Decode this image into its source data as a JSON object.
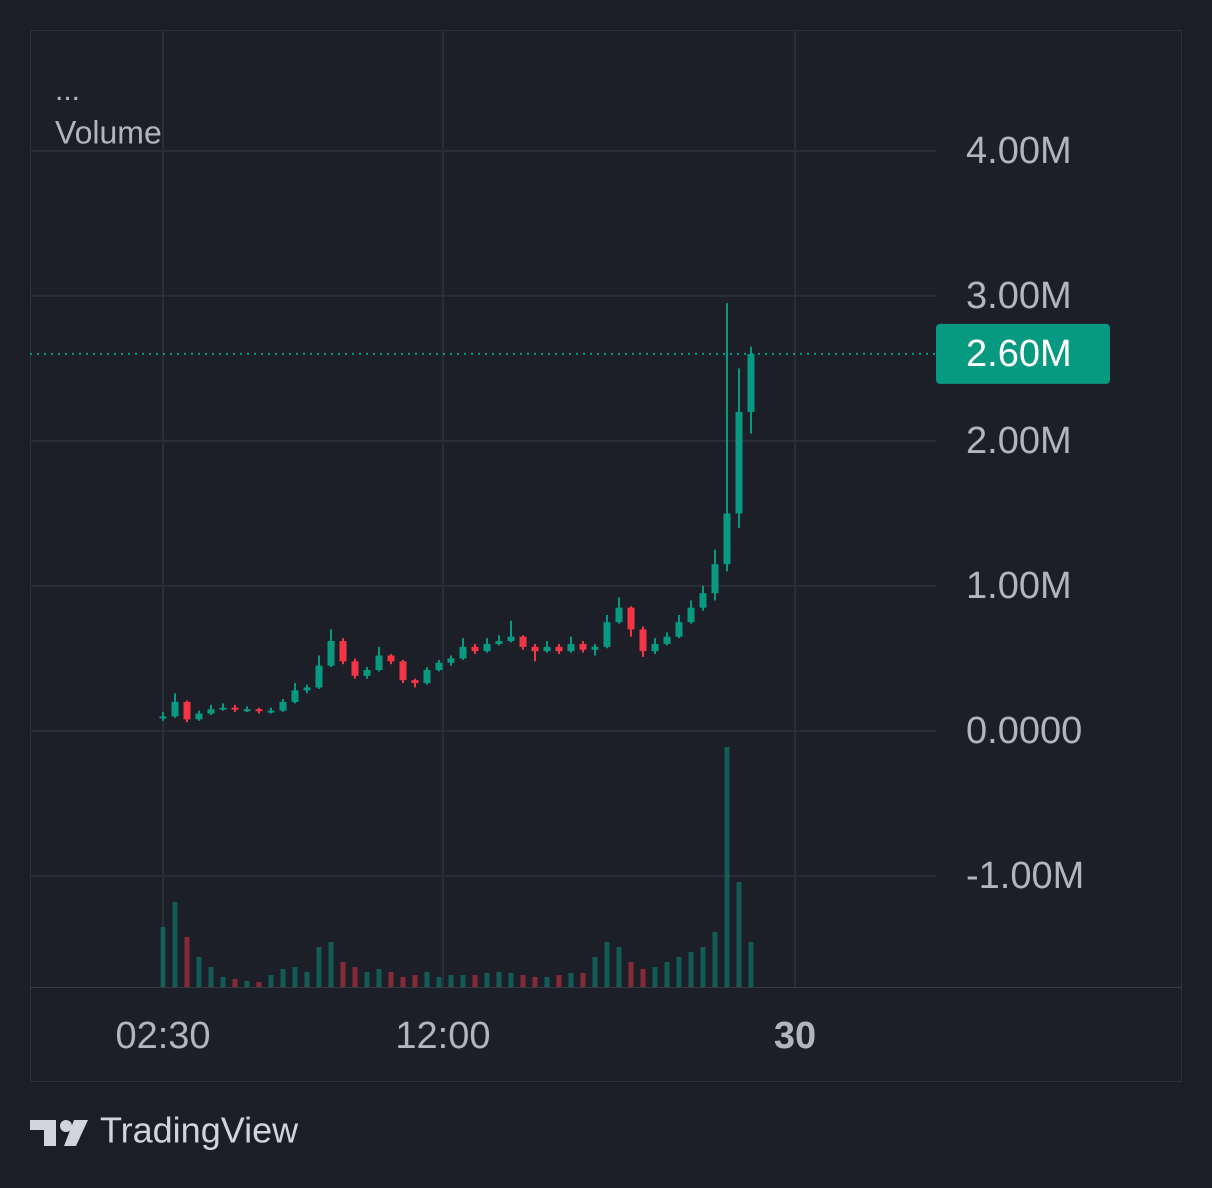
{
  "chart_data": {
    "type": "candlestick",
    "legend_menu": "...",
    "volume_label": "Volume",
    "branding": "TradingView",
    "open": [
      90000,
      100000,
      200000,
      80000,
      120000,
      150000,
      160000,
      150000,
      150000,
      140000,
      140000,
      200000,
      280000,
      300000,
      450000,
      620000,
      480000,
      380000,
      420000,
      520000,
      480000,
      350000,
      330000,
      420000,
      470000,
      500000,
      580000,
      550000,
      600000,
      620000,
      650000,
      580000,
      550000,
      580000,
      550000,
      600000,
      560000,
      580000,
      750000,
      850000,
      700000,
      550000,
      600000,
      650000,
      750000,
      850000,
      950000,
      1150000,
      1500000,
      2200000
    ],
    "high": [
      130000,
      260000,
      210000,
      140000,
      180000,
      190000,
      180000,
      170000,
      160000,
      160000,
      220000,
      330000,
      320000,
      520000,
      700000,
      640000,
      500000,
      440000,
      580000,
      530000,
      490000,
      360000,
      440000,
      490000,
      520000,
      640000,
      600000,
      640000,
      660000,
      760000,
      660000,
      600000,
      620000,
      600000,
      650000,
      620000,
      600000,
      800000,
      920000,
      860000,
      720000,
      640000,
      680000,
      800000,
      900000,
      1000000,
      1250000,
      2950000,
      2500000,
      2650000
    ],
    "low": [
      70000,
      90000,
      60000,
      70000,
      110000,
      140000,
      130000,
      130000,
      120000,
      120000,
      130000,
      190000,
      260000,
      290000,
      440000,
      460000,
      360000,
      360000,
      410000,
      460000,
      330000,
      300000,
      320000,
      410000,
      450000,
      490000,
      530000,
      540000,
      590000,
      610000,
      560000,
      480000,
      540000,
      530000,
      540000,
      540000,
      520000,
      570000,
      740000,
      650000,
      510000,
      530000,
      590000,
      640000,
      740000,
      830000,
      900000,
      1100000,
      1400000,
      2050000
    ],
    "close": [
      100000,
      200000,
      80000,
      120000,
      150000,
      160000,
      150000,
      150000,
      140000,
      140000,
      200000,
      280000,
      300000,
      450000,
      620000,
      480000,
      380000,
      420000,
      520000,
      480000,
      350000,
      330000,
      420000,
      470000,
      500000,
      580000,
      550000,
      600000,
      620000,
      650000,
      580000,
      550000,
      580000,
      550000,
      600000,
      560000,
      580000,
      750000,
      850000,
      700000,
      550000,
      600000,
      650000,
      750000,
      850000,
      950000,
      1150000,
      1500000,
      2200000,
      2600000
    ],
    "volume": [
      60,
      85,
      50,
      30,
      20,
      10,
      8,
      6,
      5,
      12,
      18,
      20,
      15,
      40,
      45,
      25,
      20,
      15,
      18,
      15,
      10,
      12,
      15,
      10,
      12,
      12,
      12,
      14,
      15,
      14,
      12,
      10,
      10,
      12,
      14,
      14,
      30,
      45,
      40,
      25,
      18,
      20,
      25,
      30,
      35,
      40,
      55,
      240,
      105,
      45
    ],
    "up_color": "#089981",
    "down_color": "#f23645",
    "xlim": [
      -11.083,
      64.417
    ],
    "xticks": [
      {
        "value": 0,
        "label": "02:30"
      },
      {
        "value": 23.33,
        "label": "12:00"
      },
      {
        "value": 52.67,
        "label": "30"
      }
    ],
    "ylim": [
      -1766000,
      4834000
    ],
    "yticks": [
      {
        "value": -1000000,
        "label": "-1.00M"
      },
      {
        "value": 0,
        "label": "0.0000"
      },
      {
        "value": 1000000,
        "label": "1.00M"
      },
      {
        "value": 2000000,
        "label": "2.00M"
      },
      {
        "value": 3000000,
        "label": "3.00M"
      },
      {
        "value": 4000000,
        "label": "4.00M"
      }
    ],
    "last_price": {
      "value": 2600000,
      "label": "2.60M"
    },
    "grid": true
  }
}
